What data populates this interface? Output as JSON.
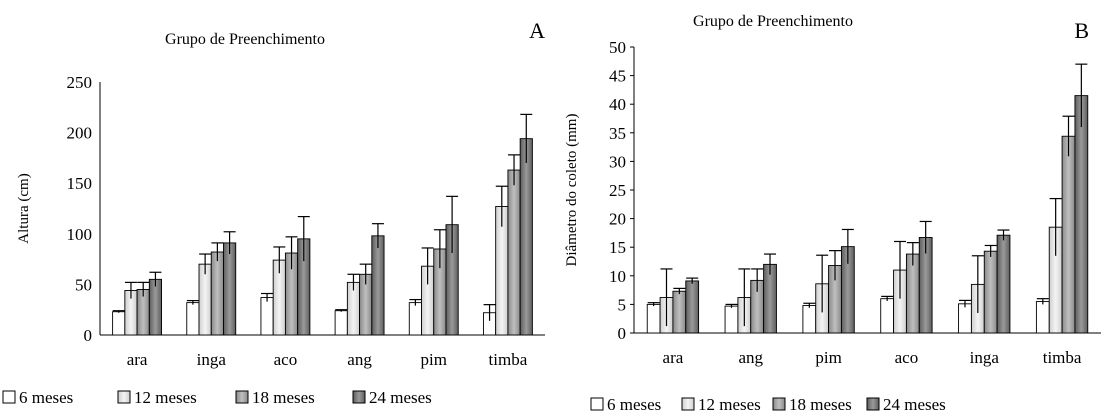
{
  "chart_data": [
    {
      "type": "bar",
      "panel": "A",
      "title": "Grupo de Preenchimento",
      "xlabel": "",
      "ylabel": "Altura (cm)",
      "ylim": [
        0,
        250
      ],
      "yticks": [
        0,
        50,
        100,
        150,
        200,
        250
      ],
      "grid": false,
      "legend_position": "bottom",
      "categories": [
        "ara",
        "inga",
        "aco",
        "ang",
        "pim",
        "timba"
      ],
      "series": [
        {
          "name": "6 meses",
          "values": [
            23,
            32,
            37,
            24,
            32,
            22
          ],
          "errors": [
            1,
            2,
            4,
            1,
            3,
            8
          ]
        },
        {
          "name": "12 meses",
          "values": [
            44,
            70,
            74,
            52,
            68,
            127
          ],
          "errors": [
            8,
            10,
            13,
            8,
            18,
            20
          ]
        },
        {
          "name": "18 meses",
          "values": [
            45,
            82,
            81,
            60,
            85,
            163
          ],
          "errors": [
            7,
            9,
            16,
            10,
            19,
            15
          ]
        },
        {
          "name": "24 meses",
          "values": [
            55,
            91,
            95,
            98,
            109,
            194
          ],
          "errors": [
            7,
            11,
            22,
            12,
            28,
            24
          ]
        }
      ]
    },
    {
      "type": "bar",
      "panel": "B",
      "title": "Grupo de Preenchimento",
      "xlabel": "",
      "ylabel": "Diâmetro do coleto (mm)",
      "ylim": [
        0,
        50
      ],
      "yticks": [
        0,
        5,
        10,
        15,
        20,
        25,
        30,
        35,
        40,
        45,
        50
      ],
      "grid": false,
      "legend_position": "bottom",
      "categories": [
        "ara",
        "ang",
        "pim",
        "aco",
        "inga",
        "timba"
      ],
      "series": [
        {
          "name": "6 meses",
          "values": [
            5.0,
            4.7,
            4.8,
            6.0,
            5.1,
            5.5
          ],
          "errors": [
            0.3,
            0.3,
            0.4,
            0.4,
            0.6,
            0.5
          ]
        },
        {
          "name": "12 meses",
          "values": [
            6.2,
            6.2,
            8.6,
            11.0,
            8.5,
            18.5
          ],
          "errors": [
            5.0,
            5.0,
            5.0,
            5.0,
            5.0,
            5.0
          ]
        },
        {
          "name": "18 meses",
          "values": [
            7.3,
            9.2,
            11.8,
            13.8,
            14.3,
            34.4
          ],
          "errors": [
            0.5,
            2.0,
            2.6,
            2.0,
            1.0,
            3.5
          ]
        },
        {
          "name": "24 meses",
          "values": [
            9.1,
            12.0,
            15.1,
            16.7,
            17.1,
            41.5
          ],
          "errors": [
            0.5,
            1.8,
            3.0,
            2.8,
            0.9,
            5.5
          ]
        }
      ]
    }
  ],
  "colors": {
    "series": [
      "#ffffff",
      "#e6e6e6",
      "#a6a6a6",
      "#808080"
    ],
    "stroke": "#000000",
    "gradient": [
      [
        "#ffffff",
        "#ffffff"
      ],
      [
        "#cfcfcf",
        "#f4f4f4"
      ],
      [
        "#8a8a8a",
        "#bfbfbf"
      ],
      [
        "#5e5e5e",
        "#9a9a9a"
      ]
    ]
  }
}
